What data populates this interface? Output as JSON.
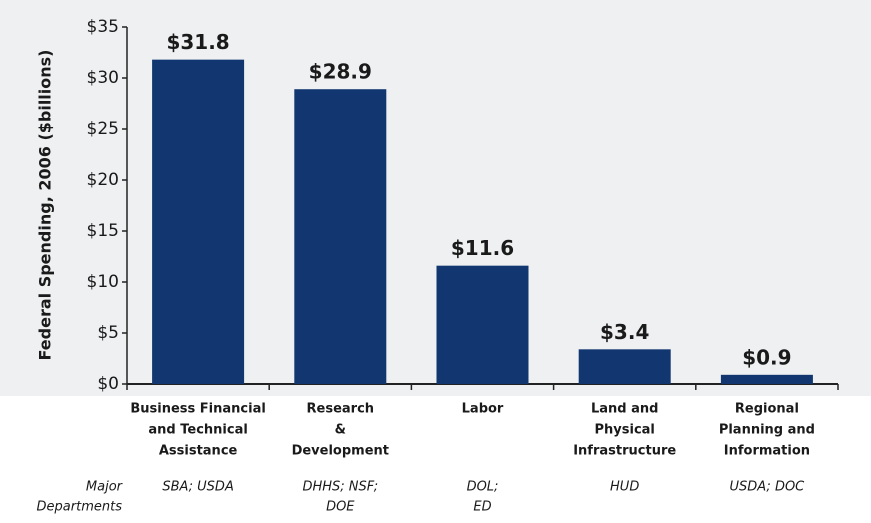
{
  "chart_data": {
    "type": "bar",
    "y_label": "Federal Spending, 2006 ($billions)",
    "categories": [
      [
        "Business Financial",
        "and Technical",
        "Assistance"
      ],
      [
        "Research",
        "&",
        "Development"
      ],
      [
        "Labor"
      ],
      [
        "Land and",
        "Physical",
        "Infrastructure"
      ],
      [
        "Regional",
        "Planning and",
        "Information"
      ]
    ],
    "values": [
      31.8,
      28.9,
      11.6,
      3.4,
      0.9
    ],
    "value_labels": [
      "$31.8",
      "$28.9",
      "$11.6",
      "$3.4",
      "$0.9"
    ],
    "color": "#123670",
    "ylim": [
      0,
      35
    ],
    "yticks": [
      {
        "value": 0,
        "label": "$0"
      },
      {
        "value": 5,
        "label": "$5"
      },
      {
        "value": 10,
        "label": "$10"
      },
      {
        "value": 15,
        "label": "$15"
      },
      {
        "value": 20,
        "label": "$20"
      },
      {
        "value": 25,
        "label": "$25"
      },
      {
        "value": 30,
        "label": "$30"
      },
      {
        "value": 35,
        "label": "$35"
      }
    ],
    "departments_label": [
      "Major",
      "Departments"
    ],
    "departments": [
      [
        "SBA; USDA"
      ],
      [
        "DHHS; NSF;",
        "DOE"
      ],
      [
        "DOL;",
        "ED"
      ],
      [
        "HUD"
      ],
      [
        "USDA; DOC"
      ]
    ]
  }
}
